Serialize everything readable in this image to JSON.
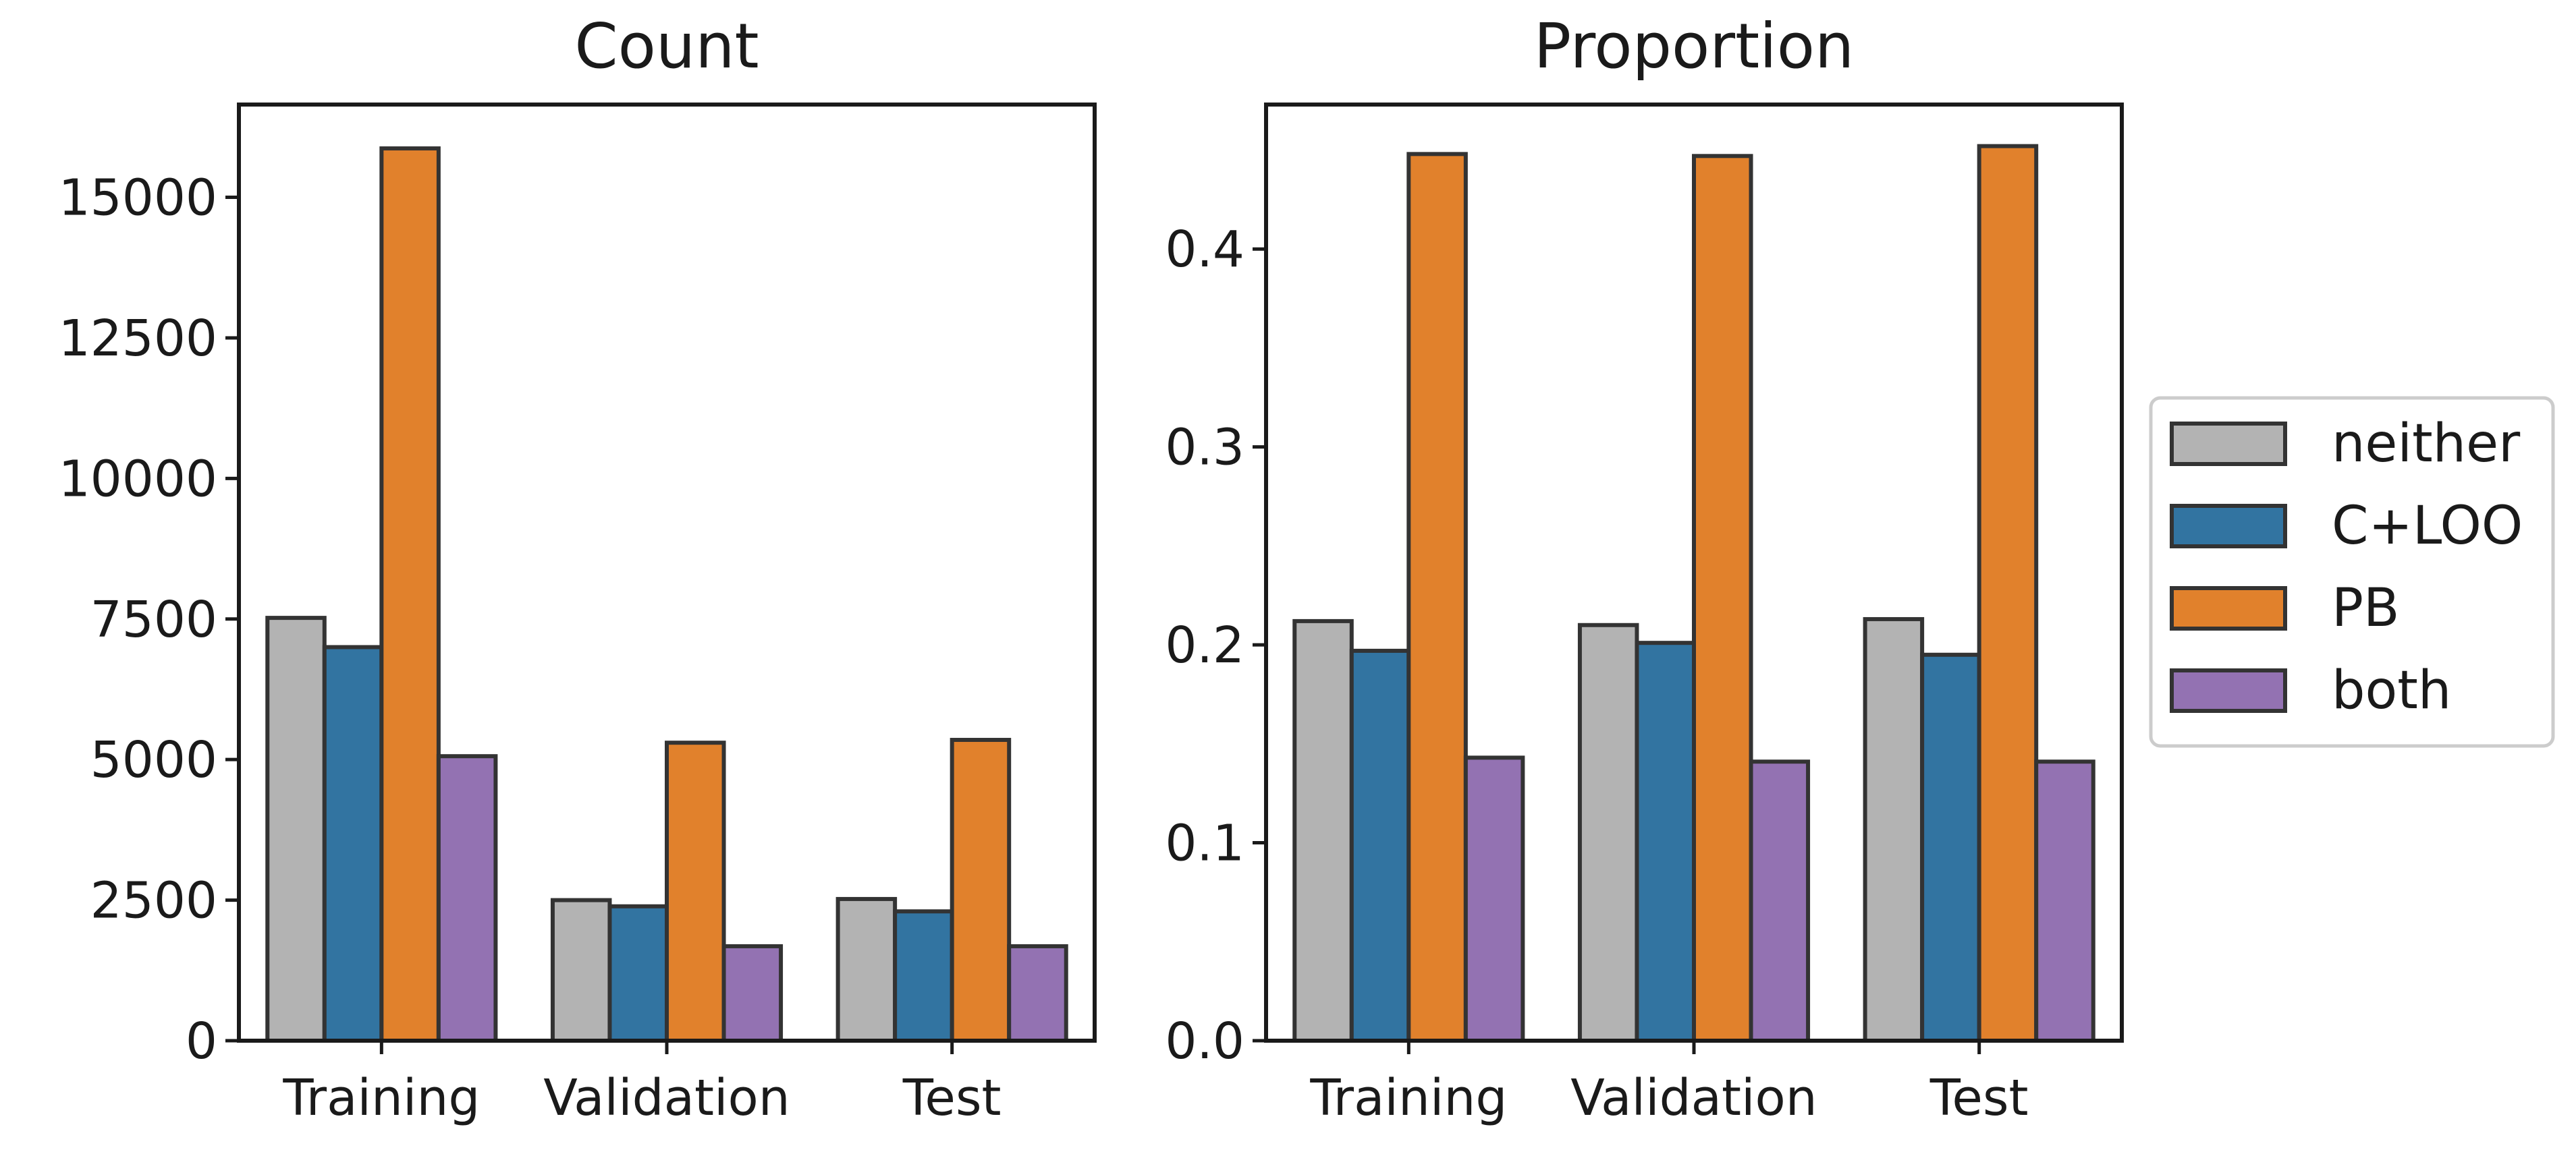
{
  "chart_data": [
    {
      "type": "bar",
      "title": "Count",
      "xlabel": "",
      "ylabel": "",
      "categories": [
        "Training",
        "Validation",
        "Test"
      ],
      "ylim": [
        0,
        16650
      ],
      "yticks": [
        0,
        2500,
        5000,
        7500,
        10000,
        12500,
        15000
      ],
      "ytick_labels": [
        "0",
        "2500",
        "5000",
        "7500",
        "10000",
        "12500",
        "15000"
      ],
      "series": [
        {
          "name": "neither",
          "color": "#b3b3b3",
          "values": [
            7520,
            2500,
            2520
          ]
        },
        {
          "name": "C+LOO",
          "color": "#3274a1",
          "values": [
            7000,
            2390,
            2300
          ]
        },
        {
          "name": "PB",
          "color": "#e1812c",
          "values": [
            15870,
            5300,
            5350
          ]
        },
        {
          "name": "both",
          "color": "#9372b2",
          "values": [
            5060,
            1680,
            1680
          ]
        }
      ],
      "grid": false
    },
    {
      "type": "bar",
      "title": "Proportion",
      "xlabel": "",
      "ylabel": "",
      "categories": [
        "Training",
        "Validation",
        "Test"
      ],
      "ylim": [
        0,
        0.473
      ],
      "yticks": [
        0.0,
        0.1,
        0.2,
        0.3,
        0.4
      ],
      "ytick_labels": [
        "0.0",
        "0.1",
        "0.2",
        "0.3",
        "0.4"
      ],
      "series": [
        {
          "name": "neither",
          "color": "#b3b3b3",
          "values": [
            0.212,
            0.21,
            0.213
          ]
        },
        {
          "name": "C+LOO",
          "color": "#3274a1",
          "values": [
            0.197,
            0.201,
            0.195
          ]
        },
        {
          "name": "PB",
          "color": "#e1812c",
          "values": [
            0.448,
            0.447,
            0.452
          ]
        },
        {
          "name": "both",
          "color": "#9372b2",
          "values": [
            0.143,
            0.141,
            0.141
          ]
        }
      ],
      "grid": false
    }
  ],
  "legend": {
    "placement": "right",
    "items": [
      {
        "label": "neither",
        "color": "#b3b3b3"
      },
      {
        "label": "C+LOO",
        "color": "#3274a1"
      },
      {
        "label": "PB",
        "color": "#e1812c"
      },
      {
        "label": "both",
        "color": "#9372b2"
      }
    ]
  }
}
